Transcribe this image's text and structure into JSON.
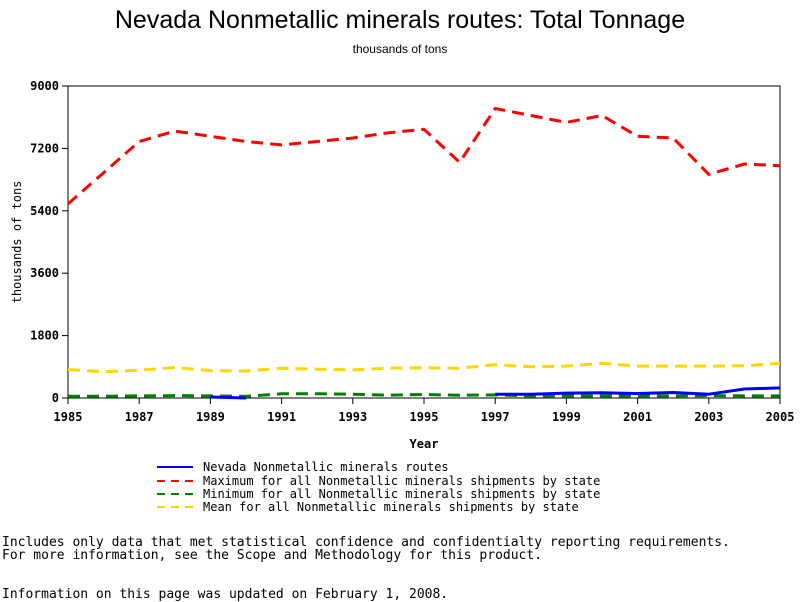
{
  "chart_data": {
    "type": "line",
    "title": "Nevada Nonmetallic minerals routes: Total Tonnage",
    "subtitle": "thousands of tons",
    "xlabel": "Year",
    "ylabel": "thousands of tons",
    "xlim": [
      1985,
      2005
    ],
    "ylim": [
      0,
      9000
    ],
    "x_ticks": [
      "1985",
      "1987",
      "1989",
      "1991",
      "1993",
      "1995",
      "1997",
      "1999",
      "2001",
      "2003",
      "2005"
    ],
    "y_ticks": [
      "0",
      "1800",
      "3600",
      "5400",
      "7200",
      "9000"
    ],
    "grid": false,
    "legend_position": "bottom",
    "x": [
      1985,
      1986,
      1987,
      1988,
      1989,
      1990,
      1991,
      1992,
      1993,
      1994,
      1995,
      1996,
      1997,
      1998,
      1999,
      2000,
      2001,
      2002,
      2003,
      2004,
      2005
    ],
    "series": [
      {
        "name": "Nevada Nonmetallic minerals routes",
        "color": "#0000ff",
        "style": "solid",
        "values": [
          null,
          null,
          null,
          null,
          30,
          0,
          null,
          null,
          null,
          null,
          null,
          null,
          110,
          110,
          140,
          150,
          130,
          160,
          110,
          260,
          290
        ]
      },
      {
        "name": "Maximum for all Nonmetallic minerals shipments by state",
        "color": "#ff0000",
        "style": "dashed",
        "values": [
          5600,
          6500,
          7400,
          7700,
          7550,
          7400,
          7300,
          7400,
          7500,
          7650,
          7750,
          6800,
          8350,
          8150,
          7950,
          8150,
          7550,
          7500,
          6450,
          6750,
          6700
        ]
      },
      {
        "name": "Minimum for all Nonmetallic minerals shipments by state",
        "color": "#008000",
        "style": "dashed",
        "values": [
          50,
          50,
          60,
          70,
          60,
          50,
          120,
          120,
          110,
          80,
          100,
          80,
          90,
          60,
          60,
          60,
          60,
          60,
          70,
          60,
          60
        ]
      },
      {
        "name": "Mean for all Nonmetallic minerals shipments by state",
        "color": "#ffd700",
        "style": "dashed",
        "values": [
          820,
          760,
          800,
          880,
          790,
          780,
          860,
          830,
          810,
          860,
          870,
          860,
          960,
          900,
          920,
          1000,
          920,
          920,
          920,
          930,
          1000
        ]
      }
    ]
  },
  "notes": {
    "line1": "Includes only data that met statistical confidence and confidentialty reporting requirements.",
    "line2": "For more information, see the Scope and Methodology for this product.",
    "updated": "Information on this page was updated on February 1, 2008."
  }
}
